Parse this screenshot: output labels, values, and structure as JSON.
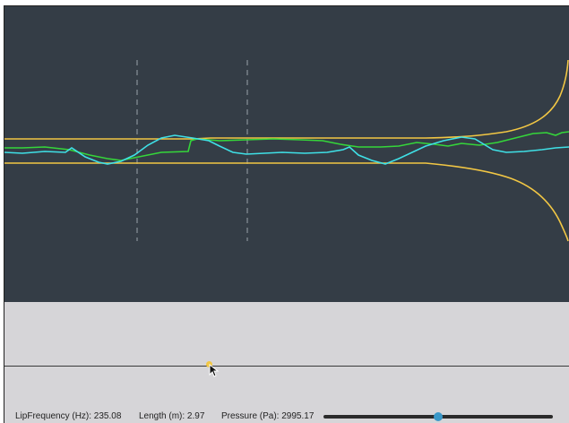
{
  "colors": {
    "canvas_bg": "#343d46",
    "tube_wall": "#f2c744",
    "pressure_wave": "#3fe0e6",
    "velocity_wave": "#35d63a",
    "mic_line": "#9aa3ab",
    "lower_panel_bg": "#d6d5d8",
    "slider_thumb": "#3a98c9"
  },
  "status": {
    "lip_frequency": "LipFrequency (Hz): 235.08",
    "length": "Length (m): 2.97",
    "pressure": "Pressure (Pa): 2995.17"
  },
  "pressure_slider": {
    "value_fraction": 0.5
  },
  "icons": {
    "cursor": "arrow-cursor-icon"
  }
}
